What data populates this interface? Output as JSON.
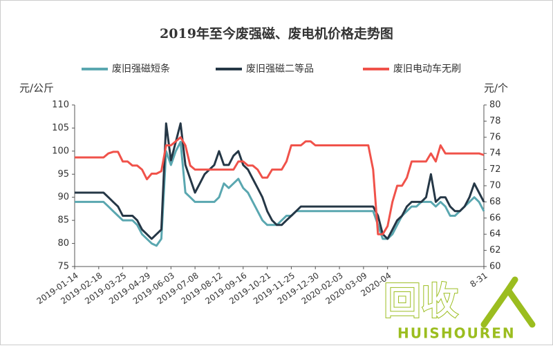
{
  "chart_data": {
    "type": "line",
    "title": "2019年至今废强磁、废电机价格走势图",
    "y_label": "元/公斤",
    "y2_label": "元/个",
    "categories": [
      "2019-01-14",
      null,
      null,
      null,
      null,
      "2019-02-18",
      null,
      null,
      null,
      null,
      "2019-03-25",
      null,
      null,
      null,
      null,
      "2019-04-29",
      null,
      null,
      null,
      null,
      "2019-06-03",
      null,
      null,
      null,
      null,
      "2019-07-08",
      null,
      null,
      null,
      null,
      "2019-08-12",
      null,
      null,
      null,
      null,
      "2019-09-16",
      null,
      null,
      null,
      null,
      "2019-10-21",
      null,
      null,
      null,
      null,
      "2019-11-25",
      null,
      null,
      null,
      null,
      "2019-12-30",
      null,
      null,
      null,
      null,
      "2020-02-03",
      null,
      null,
      null,
      null,
      "2020-03-09",
      null,
      null,
      null,
      null,
      "2020-04",
      null,
      null,
      null,
      null,
      null,
      null,
      null,
      null,
      null,
      null,
      null,
      null,
      null,
      null,
      null,
      null,
      null,
      null,
      null,
      "8-31"
    ],
    "series": [
      {
        "name": "废旧强磁短条",
        "color": "#5aa7b0",
        "axis": "y",
        "values": [
          89,
          89,
          89,
          89,
          89,
          89,
          89,
          88,
          87,
          86,
          85,
          85,
          85,
          84,
          82,
          81,
          80,
          79.5,
          81,
          100,
          97,
          100,
          102,
          91,
          90,
          89,
          89,
          89,
          89,
          89,
          90,
          93,
          92,
          93,
          94,
          92,
          91,
          89,
          87,
          85,
          84,
          84,
          84,
          85,
          86,
          86,
          87,
          87,
          87,
          87,
          87,
          87,
          87,
          87,
          87,
          87,
          87,
          87,
          87,
          87,
          87,
          87,
          87,
          84,
          81,
          81,
          82,
          84,
          86,
          87,
          88,
          88,
          89,
          89,
          89,
          88,
          89,
          88,
          86,
          86,
          87,
          88,
          89,
          90,
          89,
          87
        ]
      },
      {
        "name": "废旧强磁二等品",
        "color": "#253746",
        "axis": "y",
        "values": [
          91,
          91,
          91,
          91,
          91,
          91,
          91,
          90,
          89,
          88,
          86,
          86,
          86,
          85,
          83,
          82,
          81,
          82,
          83,
          106,
          98,
          102,
          106,
          97,
          94,
          91,
          93,
          95,
          96,
          97,
          100,
          97,
          97,
          99,
          100,
          97,
          96,
          94,
          92,
          90,
          87,
          85,
          84,
          84,
          85,
          86,
          87,
          88,
          88,
          88,
          88,
          88,
          88,
          88,
          88,
          88,
          88,
          88,
          88,
          88,
          88,
          88,
          88,
          86,
          82,
          81,
          83,
          85,
          86,
          88,
          89,
          89,
          89,
          90,
          95,
          89,
          90,
          90,
          88,
          87,
          87,
          88,
          90,
          93,
          91,
          89
        ]
      },
      {
        "name": "废旧电动车无刷",
        "color": "#f0524a",
        "axis": "y2",
        "values": [
          73.5,
          73.5,
          73.5,
          73.5,
          73.5,
          73.5,
          73.5,
          74,
          74.2,
          74.2,
          73,
          73,
          72.5,
          72.5,
          72,
          70.8,
          71.5,
          71.5,
          71.8,
          75,
          75,
          75.5,
          76,
          75,
          72.5,
          72,
          72,
          72,
          72,
          72,
          72,
          72,
          72,
          72,
          73,
          73,
          72.5,
          72.5,
          72,
          71,
          71,
          72,
          72,
          72,
          73,
          75,
          75,
          75,
          75.5,
          75.5,
          75,
          75,
          75,
          75,
          75,
          75,
          75,
          75,
          75,
          75,
          75,
          75,
          72,
          64,
          64,
          65,
          68,
          70,
          70,
          71,
          73,
          73,
          73,
          73,
          74,
          73,
          75,
          74,
          74,
          74,
          74,
          74,
          74,
          74,
          74,
          73.8
        ]
      }
    ],
    "ylim": [
      75,
      110
    ],
    "yticks": [
      75,
      80,
      85,
      90,
      95,
      100,
      105,
      110
    ],
    "y2lim": [
      60,
      80
    ],
    "y2ticks": [
      60,
      62,
      64,
      66,
      68,
      70,
      72,
      74,
      76,
      78,
      80
    ],
    "grid": false,
    "legend": "top"
  },
  "logo": {
    "text": "回收",
    "subtext": "HUISHOUREN"
  }
}
